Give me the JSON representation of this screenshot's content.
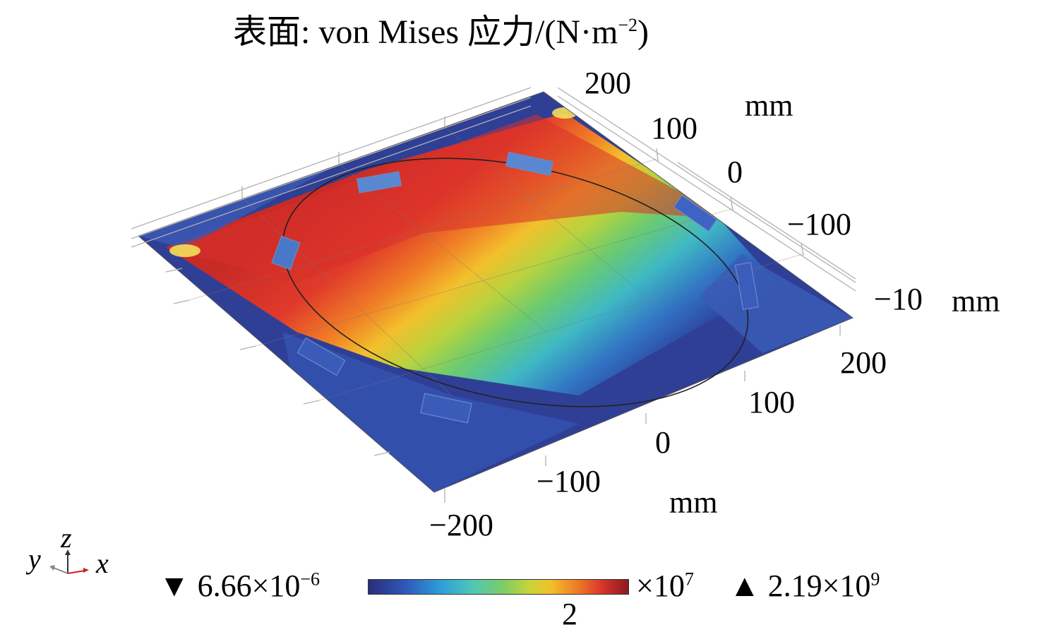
{
  "title": {
    "main": "表面: von Mises 应力/(N·m",
    "exp": "−2",
    "close": ")"
  },
  "axes": {
    "z_unit": "mm",
    "z_ticks": [
      "200",
      "100",
      "0",
      "−100"
    ],
    "y_bottom_label": "−10",
    "y_bottom_unit": "mm",
    "x_unit": "mm",
    "x_ticks": [
      "200",
      "100",
      "0",
      "−100",
      "−200"
    ]
  },
  "triad": {
    "y": "y",
    "z": "z",
    "x": "x"
  },
  "legend": {
    "min_marker": "▼",
    "min_mant": "6.66×10",
    "min_exp": "−6",
    "scale_mant": "×10",
    "scale_exp": "7",
    "max_marker": "▲",
    "max_mant": "2.19×10",
    "max_exp": "9",
    "mid_tick": "2"
  },
  "colors": {
    "low": "#2a2d7c",
    "mid": "#7ccd64",
    "high": "#8a1a20"
  },
  "chart_data": {
    "type": "heatmap",
    "title": "表面: von Mises 应力/(N·m−2)",
    "colorbar": {
      "min": 6.66e-06,
      "max": 2190000000.0,
      "scale_factor": "×10^7",
      "ticks": [
        2
      ]
    },
    "axis_ticks": {
      "x": [
        200,
        100,
        0,
        -100,
        -200
      ],
      "z": [
        200,
        100,
        0,
        -100
      ],
      "y": [
        -10
      ]
    },
    "units": "mm"
  }
}
